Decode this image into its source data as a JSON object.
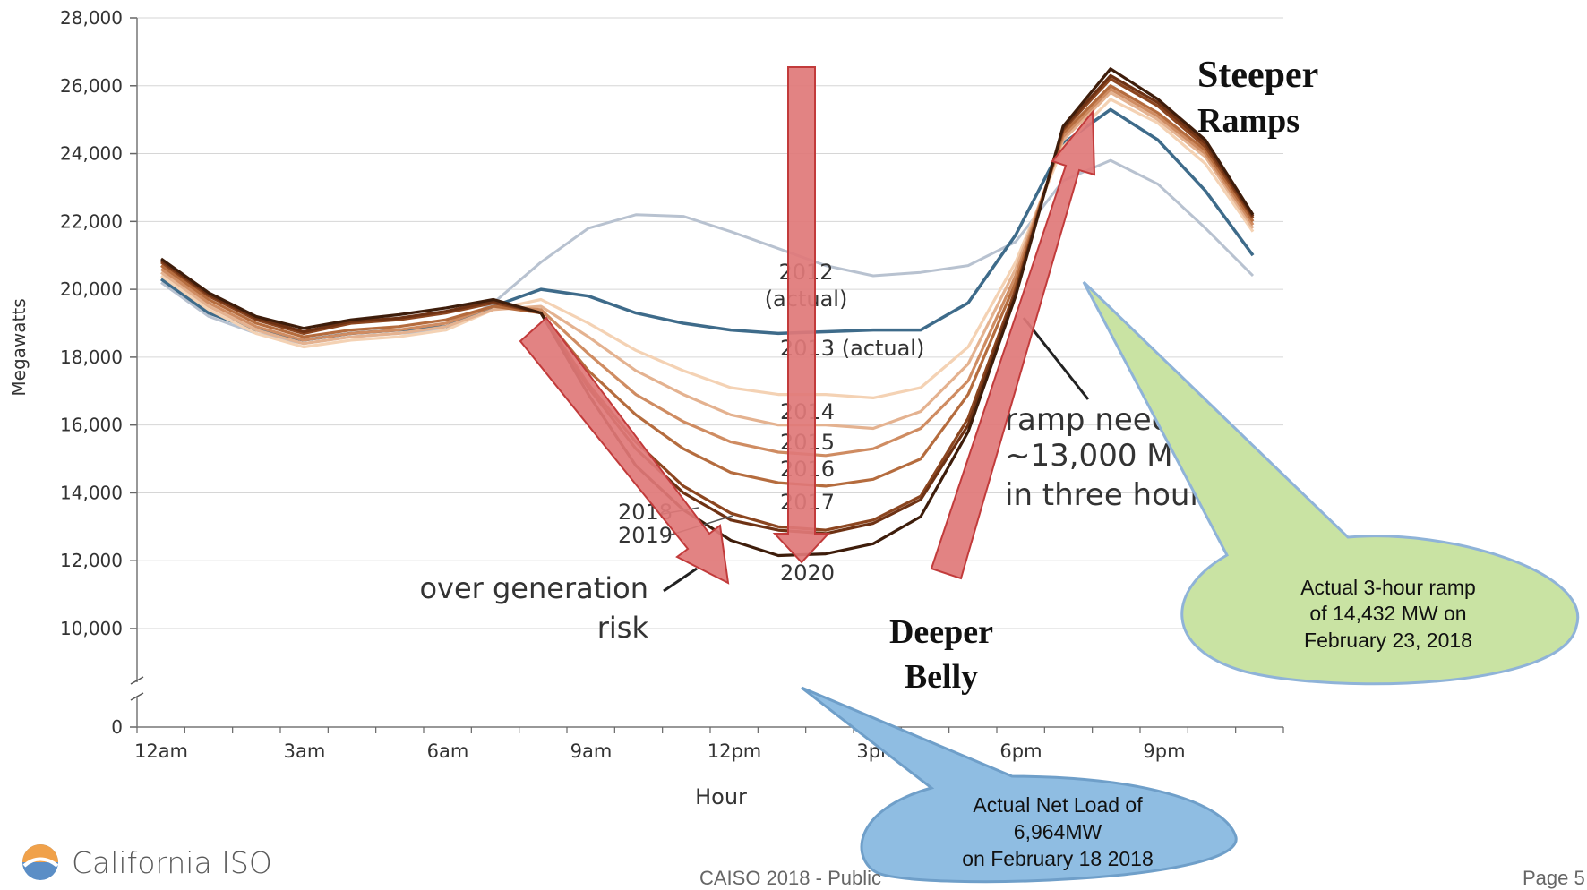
{
  "chart_data": {
    "type": "line",
    "ylabel": "Megawatts",
    "xlabel": "Hour",
    "ylim": [
      0,
      28000
    ],
    "y_axis_break": [
      0,
      10000
    ],
    "yticks": [
      0,
      10000,
      12000,
      14000,
      16000,
      18000,
      20000,
      22000,
      24000,
      26000,
      28000
    ],
    "ytick_labels": [
      "0",
      "10,000",
      "12,000",
      "14,000",
      "16,000",
      "18,000",
      "20,000",
      "22,000",
      "24,000",
      "26,000",
      "28,000"
    ],
    "xticks": [
      0,
      3,
      6,
      9,
      12,
      15,
      18,
      21
    ],
    "xtick_labels": [
      "12am",
      "3am",
      "6am",
      "9am",
      "12pm",
      "3pm",
      "6pm",
      "9pm"
    ],
    "grid": "horizontal",
    "x": [
      0,
      1,
      2,
      3,
      4,
      5,
      6,
      7,
      8,
      9,
      10,
      11,
      12,
      13,
      14,
      15,
      16,
      17,
      18,
      19,
      20,
      21,
      22,
      23
    ],
    "series": [
      {
        "name": "2012 (actual)",
        "color": "#b8c2d0",
        "values": [
          20200,
          19200,
          18700,
          18400,
          18600,
          18700,
          18800,
          19600,
          20800,
          21800,
          22200,
          22150,
          21700,
          21200,
          20700,
          20400,
          20500,
          20700,
          21400,
          23200,
          23800,
          23100,
          21800,
          20400
        ]
      },
      {
        "name": "2013 (actual)",
        "color": "#3e6b8a",
        "values": [
          20300,
          19300,
          18800,
          18500,
          18700,
          18800,
          18900,
          19500,
          20000,
          19800,
          19300,
          19000,
          18800,
          18700,
          18750,
          18800,
          18800,
          19600,
          21600,
          24300,
          25300,
          24400,
          22900,
          21000
        ]
      },
      {
        "name": "2014",
        "color": "#f4d2b4",
        "values": [
          20400,
          19400,
          18700,
          18300,
          18500,
          18600,
          18800,
          19400,
          19700,
          19000,
          18200,
          17600,
          17100,
          16900,
          16900,
          16800,
          17100,
          18300,
          20800,
          24200,
          25600,
          24900,
          23700,
          21700
        ]
      },
      {
        "name": "2015",
        "color": "#e4b290",
        "values": [
          20500,
          19500,
          18800,
          18400,
          18600,
          18700,
          18900,
          19400,
          19500,
          18600,
          17600,
          16900,
          16300,
          16000,
          16000,
          15900,
          16400,
          17800,
          20600,
          24400,
          25800,
          25000,
          23900,
          21800
        ]
      },
      {
        "name": "2016",
        "color": "#cf8c62",
        "values": [
          20600,
          19600,
          18900,
          18500,
          18700,
          18800,
          19000,
          19500,
          19400,
          18100,
          16900,
          16100,
          15500,
          15200,
          15100,
          15300,
          15900,
          17300,
          20400,
          24500,
          25900,
          25100,
          24000,
          21900
        ]
      },
      {
        "name": "2017",
        "color": "#b56c3e",
        "values": [
          20700,
          19700,
          19000,
          18600,
          18800,
          18900,
          19100,
          19500,
          19300,
          17600,
          16300,
          15300,
          14600,
          14300,
          14200,
          14400,
          15000,
          16900,
          20200,
          24600,
          26000,
          25200,
          24100,
          22000
        ]
      },
      {
        "name": "2018",
        "color": "#8c4620",
        "values": [
          20800,
          19800,
          19100,
          18700,
          19000,
          19100,
          19300,
          19600,
          19300,
          17200,
          15500,
          14200,
          13400,
          13000,
          12900,
          13200,
          13900,
          16200,
          20000,
          24700,
          26200,
          25400,
          24200,
          22100
        ]
      },
      {
        "name": "2019",
        "color": "#6e3214",
        "values": [
          20850,
          19850,
          19150,
          18750,
          19050,
          19150,
          19350,
          19650,
          19300,
          17100,
          15300,
          14000,
          13200,
          12900,
          12800,
          13100,
          13800,
          16000,
          19900,
          24750,
          26300,
          25500,
          24300,
          22150
        ]
      },
      {
        "name": "2020",
        "color": "#3e1d0b",
        "values": [
          20900,
          19900,
          19200,
          18850,
          19100,
          19250,
          19450,
          19700,
          19300,
          16900,
          14800,
          13500,
          12600,
          12150,
          12200,
          12500,
          13300,
          15800,
          19800,
          24800,
          26500,
          25600,
          24400,
          22200
        ]
      }
    ],
    "line_labels": {
      "label_2012_a": "2012",
      "label_2012_b": "(actual)",
      "label_2013": "2013 (actual)",
      "label_2014": "2014",
      "label_2015": "2015",
      "label_2016": "2016",
      "label_2017": "2017",
      "label_2018": "2018",
      "label_2019": "2019",
      "label_2020": "2020"
    },
    "annotations": {
      "ramp_1": "ramp need",
      "ramp_2": "~13,000 MW",
      "ramp_3": "in three hours",
      "overgen_1": "over generation",
      "overgen_2": "risk",
      "steeper_1": "Steeper",
      "steeper_2": "Ramps",
      "deeper_1": "Deeper",
      "deeper_2": "Belly",
      "callout_green_1": "Actual 3-hour ramp",
      "callout_green_2": "of 14,432 MW on",
      "callout_green_3": "February 23, 2018",
      "callout_blue_1": "Actual Net Load of",
      "callout_blue_2": "6,964MW",
      "callout_blue_3": "on February 18 2018",
      "arrow_color": "#e07878",
      "green_callout_color": "#c9e3a3",
      "blue_callout_color": "#8fbde2"
    }
  },
  "footer": {
    "logo_text": "California ISO",
    "center": "CAISO 2018 - Public",
    "page": "Page 5"
  }
}
